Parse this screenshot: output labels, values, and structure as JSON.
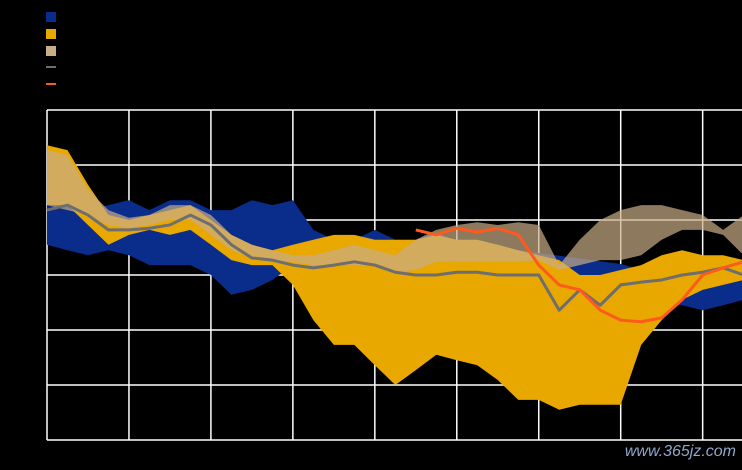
{
  "chart_data": {
    "type": "band",
    "x": [
      0,
      0.25,
      0.5,
      0.75,
      1,
      1.25,
      1.5,
      1.75,
      2,
      2.25,
      2.5,
      2.75,
      3,
      3.25,
      3.5,
      3.75,
      4,
      4.25,
      4.5,
      4.75,
      5,
      5.25,
      5.5,
      5.75,
      6,
      6.25,
      6.5,
      6.75,
      7,
      7.25,
      7.5,
      7.75,
      8,
      8.25,
      8.5
    ],
    "xlim": [
      0,
      8.48
    ],
    "xticks": [
      0,
      1,
      2,
      3,
      4,
      5,
      6,
      7,
      8
    ],
    "ylim": [
      -3,
      3
    ],
    "yticks": [
      -3,
      -2,
      -1,
      0,
      1,
      2,
      3
    ],
    "grid": true,
    "series": [
      {
        "kind": "band",
        "color": "#0a2d8c",
        "upper": [
          1.27,
          1.36,
          1.18,
          1.27,
          1.36,
          1.18,
          1.36,
          1.36,
          1.18,
          1.18,
          1.36,
          1.27,
          1.36,
          0.82,
          0.64,
          0.64,
          0.82,
          0.64,
          0.64,
          0.78,
          0.6,
          0.55,
          0.5,
          0.45,
          0.4,
          0.35,
          0.3,
          0.25,
          0.2,
          0.1,
          0.0,
          -0.1,
          -0.1,
          -0.05,
          0.0
        ],
        "lower": [
          0.55,
          0.45,
          0.36,
          0.45,
          0.36,
          0.18,
          0.18,
          0.18,
          0,
          -0.36,
          -0.27,
          -0.09,
          0.18,
          0.36,
          0.45,
          0.55,
          0.55,
          0.55,
          0.55,
          0.55,
          -0.27,
          -0.27,
          -0.27,
          -0.27,
          -0.27,
          -0.27,
          -0.27,
          -0.27,
          -0.27,
          -0.45,
          -0.55,
          -0.55,
          -0.64,
          -0.55,
          -0.45
        ]
      },
      {
        "kind": "band",
        "color": "#e8a800",
        "upper": [
          2.36,
          2.27,
          1.64,
          1.09,
          1.0,
          1.09,
          1.18,
          1.27,
          1.0,
          0.73,
          0.55,
          0.45,
          0.55,
          0.64,
          0.73,
          0.73,
          0.64,
          0.64,
          0.64,
          0.73,
          0.64,
          0.64,
          0.55,
          0.45,
          0.36,
          0.27,
          0,
          0,
          0.09,
          0.18,
          0.36,
          0.45,
          0.36,
          0.36,
          0.27
        ],
        "lower": [
          1.27,
          1.27,
          0.91,
          0.55,
          0.73,
          0.82,
          0.73,
          0.82,
          0.55,
          0.27,
          0.18,
          0.18,
          -0.18,
          -0.82,
          -1.27,
          -1.27,
          -1.64,
          -2.0,
          -1.73,
          -1.45,
          -1.55,
          -1.64,
          -1.91,
          -2.27,
          -2.27,
          -2.45,
          -2.36,
          -2.36,
          -2.36,
          -1.27,
          -0.82,
          -0.45,
          -0.27,
          -0.18,
          -0.09
        ]
      },
      {
        "kind": "band",
        "color": "#c9ad86",
        "upper": [
          2.27,
          2.18,
          1.55,
          1.18,
          1.04,
          1.09,
          1.27,
          1.27,
          1.09,
          0.73,
          0.55,
          0.45,
          0.36,
          0.36,
          0.45,
          0.55,
          0.45,
          0.36,
          0.64,
          0.82,
          0.91,
          0.96,
          0.91,
          0.96,
          0.91,
          0.18,
          0.64,
          1.0,
          1.18,
          1.27,
          1.27,
          1.18,
          1.09,
          0.82,
          1.09
        ],
        "lower": [
          1.27,
          1.18,
          1.09,
          0.91,
          0.85,
          0.91,
          1.0,
          1.0,
          0.73,
          0.45,
          0.31,
          0.27,
          0.24,
          0.18,
          0.18,
          0.18,
          0.18,
          0.05,
          0.09,
          0.24,
          0.24,
          0.24,
          0.24,
          0.24,
          0.27,
          0.09,
          0.18,
          0.27,
          0.27,
          0.36,
          0.64,
          0.82,
          0.82,
          0.73,
          0.36
        ]
      },
      {
        "kind": "line",
        "color": "#6e6e6e",
        "values": [
          1.18,
          1.27,
          1.09,
          0.82,
          0.82,
          0.85,
          0.91,
          1.09,
          0.91,
          0.55,
          0.31,
          0.27,
          0.18,
          0.13,
          0.18,
          0.24,
          0.18,
          0.05,
          0,
          0,
          0.05,
          0.05,
          0,
          0,
          0,
          -0.64,
          -0.27,
          -0.55,
          -0.18,
          -0.13,
          -0.09,
          0,
          0.05,
          0.13,
          0
        ]
      },
      {
        "kind": "line",
        "color": "#ff5a1e",
        "values": [
          null,
          null,
          null,
          null,
          null,
          null,
          null,
          null,
          null,
          null,
          null,
          null,
          null,
          null,
          null,
          null,
          null,
          null,
          0.82,
          0.73,
          0.85,
          0.78,
          0.85,
          0.73,
          0.18,
          -0.18,
          -0.27,
          -0.64,
          -0.82,
          -0.85,
          -0.78,
          -0.45,
          0,
          0.13,
          0.24
        ]
      }
    ]
  },
  "watermark": "www.365jz.com"
}
